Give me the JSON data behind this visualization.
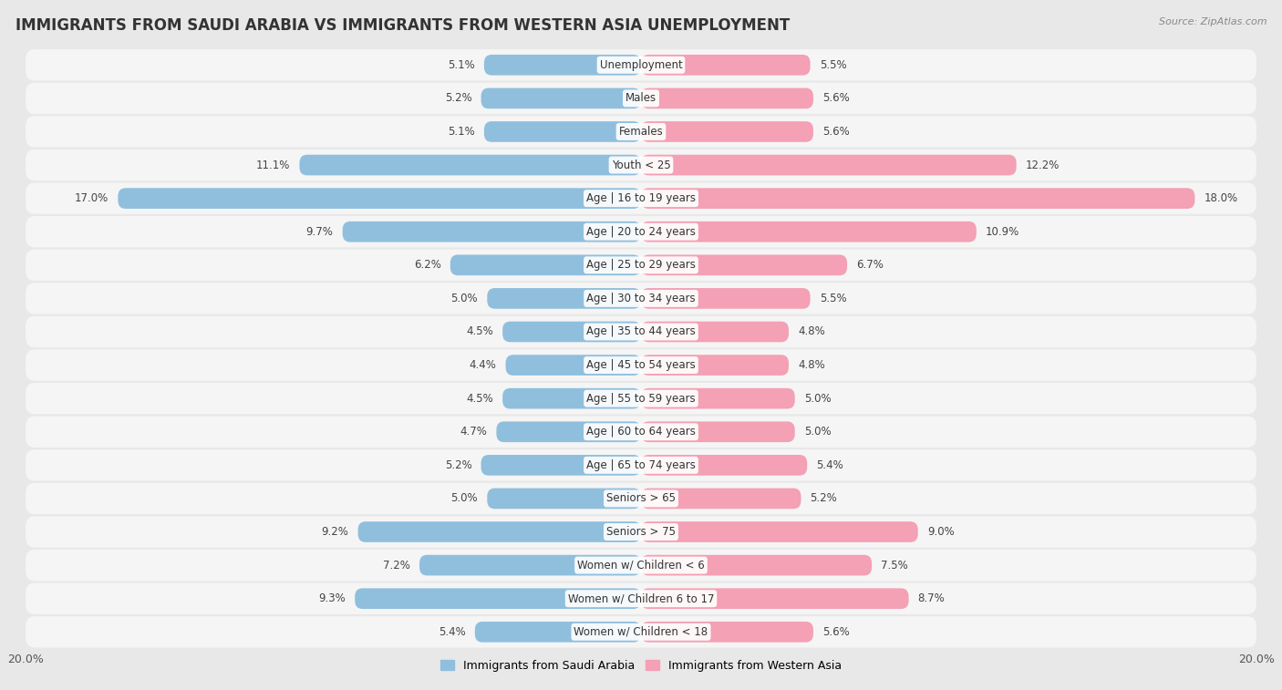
{
  "title": "IMMIGRANTS FROM SAUDI ARABIA VS IMMIGRANTS FROM WESTERN ASIA UNEMPLOYMENT",
  "source": "Source: ZipAtlas.com",
  "categories": [
    "Unemployment",
    "Males",
    "Females",
    "Youth < 25",
    "Age | 16 to 19 years",
    "Age | 20 to 24 years",
    "Age | 25 to 29 years",
    "Age | 30 to 34 years",
    "Age | 35 to 44 years",
    "Age | 45 to 54 years",
    "Age | 55 to 59 years",
    "Age | 60 to 64 years",
    "Age | 65 to 74 years",
    "Seniors > 65",
    "Seniors > 75",
    "Women w/ Children < 6",
    "Women w/ Children 6 to 17",
    "Women w/ Children < 18"
  ],
  "saudi_arabia": [
    5.1,
    5.2,
    5.1,
    11.1,
    17.0,
    9.7,
    6.2,
    5.0,
    4.5,
    4.4,
    4.5,
    4.7,
    5.2,
    5.0,
    9.2,
    7.2,
    9.3,
    5.4
  ],
  "western_asia": [
    5.5,
    5.6,
    5.6,
    12.2,
    18.0,
    10.9,
    6.7,
    5.5,
    4.8,
    4.8,
    5.0,
    5.0,
    5.4,
    5.2,
    9.0,
    7.5,
    8.7,
    5.6
  ],
  "saudi_color": "#90bfde",
  "western_color": "#f4a0b5",
  "max_val": 20.0,
  "outer_bg": "#e8e8e8",
  "row_bg": "#f5f5f5",
  "legend_label_saudi": "Immigrants from Saudi Arabia",
  "legend_label_western": "Immigrants from Western Asia",
  "title_fontsize": 12,
  "label_fontsize": 8.5,
  "value_fontsize": 8.5
}
